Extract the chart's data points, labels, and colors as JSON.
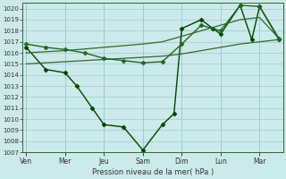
{
  "background_color": "#cceaea",
  "grid_color": "#99cccc",
  "xlabel": "Pression niveau de la mer( hPa )",
  "ylim": [
    1007,
    1020.5
  ],
  "yticks": [
    1007,
    1008,
    1009,
    1010,
    1011,
    1012,
    1013,
    1014,
    1015,
    1016,
    1017,
    1018,
    1019,
    1020
  ],
  "x_labels": [
    "Ven",
    "Mer",
    "Jeu",
    "Sam",
    "Dim",
    "Lun",
    "Mar"
  ],
  "x_tick_pos": [
    0,
    1,
    2,
    3,
    4,
    5,
    6
  ],
  "xlim": [
    -0.1,
    6.6
  ],
  "series": [
    {
      "x": [
        0,
        0.5,
        1.0,
        1.3,
        1.7,
        2.0,
        2.5,
        3.0,
        3.5,
        3.8,
        4.0,
        4.5,
        4.8,
        5.0,
        5.5,
        5.8,
        6.0,
        6.5
      ],
      "y": [
        1016.5,
        1014.5,
        1014.2,
        1013.0,
        1011.0,
        1009.5,
        1009.3,
        1007.2,
        1009.5,
        1010.5,
        1018.2,
        1019.0,
        1018.2,
        1017.7,
        1020.3,
        1017.2,
        1020.2,
        1017.2
      ],
      "color": "#004400",
      "linewidth": 1.0,
      "marker": "D",
      "markersize": 2.5
    },
    {
      "x": [
        0,
        1.0,
        2.0,
        3.0,
        3.5,
        4.0,
        4.5,
        5.0,
        5.5,
        6.0,
        6.5
      ],
      "y": [
        1016.0,
        1016.2,
        1016.5,
        1016.8,
        1017.0,
        1017.5,
        1018.0,
        1018.5,
        1019.0,
        1019.2,
        1017.3
      ],
      "color": "#336633",
      "linewidth": 0.9,
      "marker": null,
      "markersize": 0
    },
    {
      "x": [
        0,
        1.0,
        2.0,
        3.0,
        3.5,
        4.0,
        4.5,
        5.0,
        5.5,
        6.0,
        6.5
      ],
      "y": [
        1015.0,
        1015.2,
        1015.4,
        1015.6,
        1015.7,
        1015.9,
        1016.2,
        1016.5,
        1016.8,
        1017.0,
        1017.2
      ],
      "color": "#336633",
      "linewidth": 0.9,
      "marker": null,
      "markersize": 0
    },
    {
      "x": [
        0,
        0.5,
        1.0,
        1.5,
        2.0,
        2.5,
        3.0,
        3.5,
        4.0,
        4.5,
        5.0,
        5.5,
        6.0,
        6.5
      ],
      "y": [
        1016.8,
        1016.5,
        1016.3,
        1016.0,
        1015.5,
        1015.3,
        1015.1,
        1015.2,
        1016.8,
        1018.5,
        1018.0,
        1020.3,
        1020.2,
        1017.3
      ],
      "color": "#226622",
      "linewidth": 1.0,
      "marker": "D",
      "markersize": 2.5
    }
  ]
}
